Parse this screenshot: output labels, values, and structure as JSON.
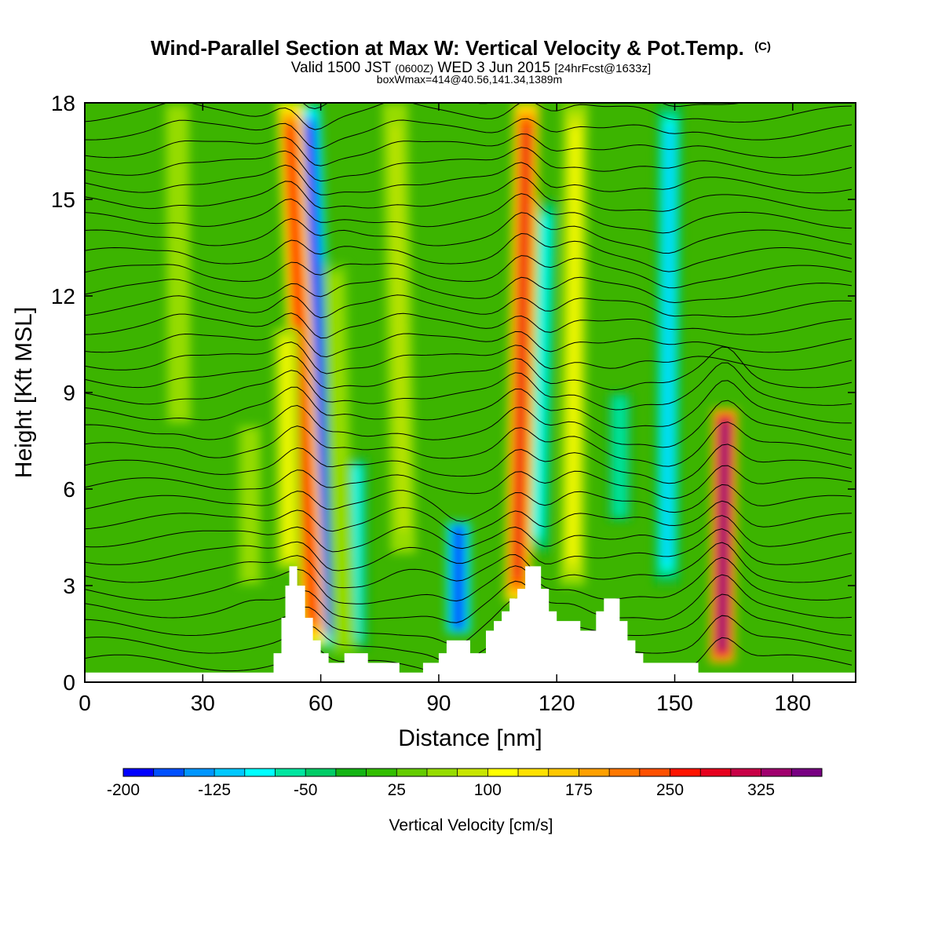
{
  "chart_data": {
    "type": "heatmap",
    "title": "Wind-Parallel Section at Max W: Vertical Velocity & Pot.Temp.",
    "title_mark": "(C)",
    "subtitle_a": "Valid 1500 JST",
    "subtitle_b": "(0600Z)",
    "subtitle_c": "WED 3 Jun 2015",
    "subtitle_d": "[24hrFcst@1633z]",
    "subtitle2": "boxWmax=414@40.56,141.34,1389m",
    "xlabel": "Distance [nm]",
    "ylabel": "Height [Kft MSL]",
    "xlim": [
      0,
      196
    ],
    "ylim": [
      0,
      18
    ],
    "xticks": [
      0,
      30,
      60,
      90,
      120,
      150,
      180
    ],
    "yticks": [
      0,
      3,
      6,
      9,
      12,
      15,
      18
    ],
    "colorbar": {
      "label": "Vertical Velocity [cm/s]",
      "min": -200,
      "max": 375,
      "step": 25,
      "ticks": [
        -200,
        -125,
        -50,
        25,
        100,
        175,
        250,
        325
      ],
      "colors": [
        "#0000ff",
        "#0050ff",
        "#0096ff",
        "#00c8ff",
        "#00ffff",
        "#00e6a0",
        "#00cc66",
        "#14b414",
        "#32be00",
        "#64cc00",
        "#96dc00",
        "#c8e600",
        "#ffff00",
        "#ffe100",
        "#ffc800",
        "#ffa000",
        "#ff7800",
        "#ff5000",
        "#ff1400",
        "#e6001e",
        "#c80046",
        "#a0006e",
        "#780082"
      ]
    },
    "updrafts": [
      {
        "x": 58,
        "y_bottom": 1.2,
        "y_top": 18,
        "w": 270,
        "lean": -0.35
      },
      {
        "x": 66,
        "y_bottom": 0.8,
        "y_top": 13,
        "w": 60,
        "lean": -0.2
      },
      {
        "x": 110,
        "y_bottom": 2.5,
        "y_top": 18,
        "w": 290,
        "lean": 0.15
      },
      {
        "x": 162,
        "y_bottom": 0.6,
        "y_top": 8.5,
        "w": 375,
        "lean": 0.1
      },
      {
        "x": 52,
        "y_bottom": 3.5,
        "y_top": 11,
        "w": 110,
        "lean": -0.1
      },
      {
        "x": 24,
        "y_bottom": 8,
        "y_top": 18,
        "w": 70,
        "lean": -0.05
      },
      {
        "x": 81,
        "y_bottom": 4,
        "y_top": 18,
        "w": 80,
        "lean": -0.15
      },
      {
        "x": 124,
        "y_bottom": 3,
        "y_top": 18,
        "w": 110,
        "lean": 0.05
      },
      {
        "x": 42,
        "y_bottom": 3,
        "y_top": 8,
        "w": 60,
        "lean": 0
      }
    ],
    "downdrafts": [
      {
        "x": 62,
        "y_bottom": 1.0,
        "y_top": 18,
        "w": -210,
        "lean": -0.3
      },
      {
        "x": 95,
        "y_bottom": 1.5,
        "y_top": 5,
        "w": -200,
        "lean": 0
      },
      {
        "x": 115,
        "y_bottom": 4,
        "y_top": 15,
        "w": -90,
        "lean": 0.2
      },
      {
        "x": 148,
        "y_bottom": 3,
        "y_top": 18,
        "w": -110,
        "lean": 0.05
      },
      {
        "x": 69,
        "y_bottom": 1,
        "y_top": 7,
        "w": -80,
        "lean": 0
      },
      {
        "x": 136,
        "y_bottom": 5,
        "y_top": 9,
        "w": -70,
        "lean": 0
      }
    ],
    "terrain": [
      [
        0,
        0.3
      ],
      [
        46,
        0.3
      ],
      [
        48,
        0.9
      ],
      [
        50,
        2.0
      ],
      [
        51,
        3.0
      ],
      [
        52,
        3.6
      ],
      [
        54,
        3.0
      ],
      [
        56,
        2.0
      ],
      [
        58,
        1.3
      ],
      [
        60,
        0.9
      ],
      [
        62,
        0.6
      ],
      [
        64,
        0.6
      ],
      [
        66,
        0.9
      ],
      [
        70,
        0.9
      ],
      [
        72,
        0.6
      ],
      [
        78,
        0.6
      ],
      [
        80,
        0.3
      ],
      [
        84,
        0.3
      ],
      [
        86,
        0.6
      ],
      [
        90,
        0.9
      ],
      [
        92,
        1.3
      ],
      [
        96,
        1.3
      ],
      [
        98,
        0.9
      ],
      [
        100,
        0.9
      ],
      [
        102,
        1.6
      ],
      [
        104,
        1.9
      ],
      [
        106,
        2.2
      ],
      [
        108,
        2.6
      ],
      [
        110,
        2.9
      ],
      [
        112,
        3.6
      ],
      [
        114,
        3.6
      ],
      [
        116,
        2.9
      ],
      [
        118,
        2.2
      ],
      [
        120,
        1.9
      ],
      [
        124,
        1.9
      ],
      [
        126,
        1.6
      ],
      [
        128,
        1.6
      ],
      [
        130,
        2.2
      ],
      [
        132,
        2.6
      ],
      [
        134,
        2.6
      ],
      [
        136,
        1.9
      ],
      [
        138,
        1.3
      ],
      [
        140,
        0.9
      ],
      [
        142,
        0.6
      ],
      [
        154,
        0.6
      ],
      [
        156,
        0.3
      ],
      [
        196,
        0.3
      ]
    ]
  }
}
